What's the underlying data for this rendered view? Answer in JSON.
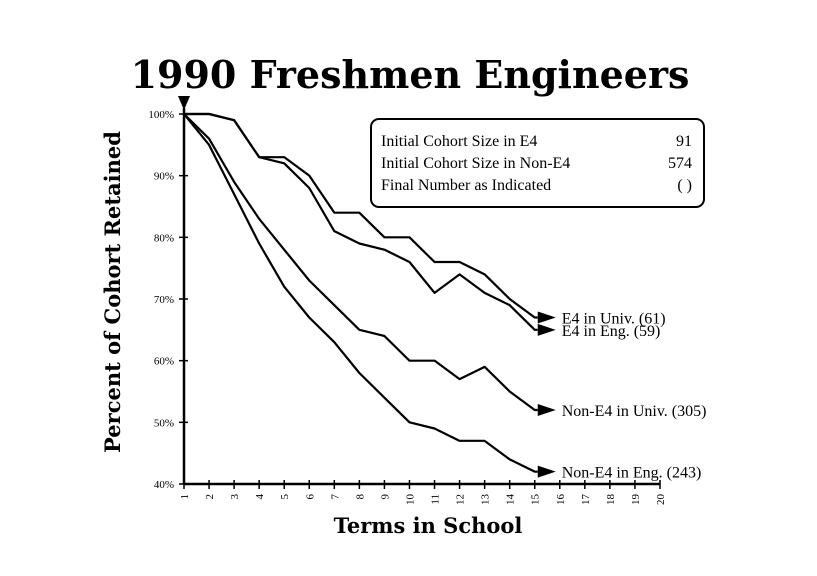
{
  "chart_data": {
    "type": "line",
    "title": "1990 Freshmen Engineers",
    "xlabel": "Terms in School",
    "ylabel": "Percent of Cohort Retained",
    "x": [
      1,
      2,
      3,
      4,
      5,
      6,
      7,
      8,
      9,
      10,
      11,
      12,
      13,
      14,
      15
    ],
    "xlim": [
      1,
      20
    ],
    "ylim": [
      40,
      100
    ],
    "xticks": [
      "1",
      "2",
      "3",
      "4",
      "5",
      "6",
      "7",
      "8",
      "9",
      "10",
      "11",
      "12",
      "13",
      "14",
      "15",
      "16",
      "17",
      "18",
      "19",
      "20"
    ],
    "yticks": [
      {
        "value": 100,
        "label": "100%"
      },
      {
        "value": 90,
        "label": "90%"
      },
      {
        "value": 80,
        "label": "80%"
      },
      {
        "value": 70,
        "label": "70%"
      },
      {
        "value": 60,
        "label": "60%"
      },
      {
        "value": 50,
        "label": "50%"
      },
      {
        "value": 40,
        "label": "40%"
      }
    ],
    "grid": false,
    "series": [
      {
        "name": "E4 in Univ. (61)",
        "values": [
          100,
          100,
          99,
          93,
          93,
          90,
          84,
          84,
          80,
          80,
          76,
          76,
          74,
          70,
          67
        ]
      },
      {
        "name": "E4 in Eng. (59)",
        "values": [
          100,
          100,
          99,
          93,
          92,
          88,
          81,
          79,
          78,
          76,
          71,
          74,
          71,
          69,
          65
        ]
      },
      {
        "name": "Non-E4 in Univ. (305)",
        "values": [
          100,
          96,
          89,
          83,
          78,
          73,
          69,
          65,
          64,
          60,
          60,
          57,
          59,
          55,
          52
        ]
      },
      {
        "name": "Non-E4 in Eng. (243)",
        "values": [
          100,
          95,
          87,
          79,
          72,
          67,
          63,
          58,
          54,
          50,
          49,
          47,
          47,
          44,
          42
        ]
      }
    ],
    "legend": {
      "position": "top-right",
      "rows": [
        {
          "label": "Initial Cohort Size in E4",
          "value": "91"
        },
        {
          "label": "Initial Cohort Size in Non-E4",
          "value": "574"
        },
        {
          "label": "Final Number as Indicated",
          "value": "( )"
        }
      ]
    }
  }
}
